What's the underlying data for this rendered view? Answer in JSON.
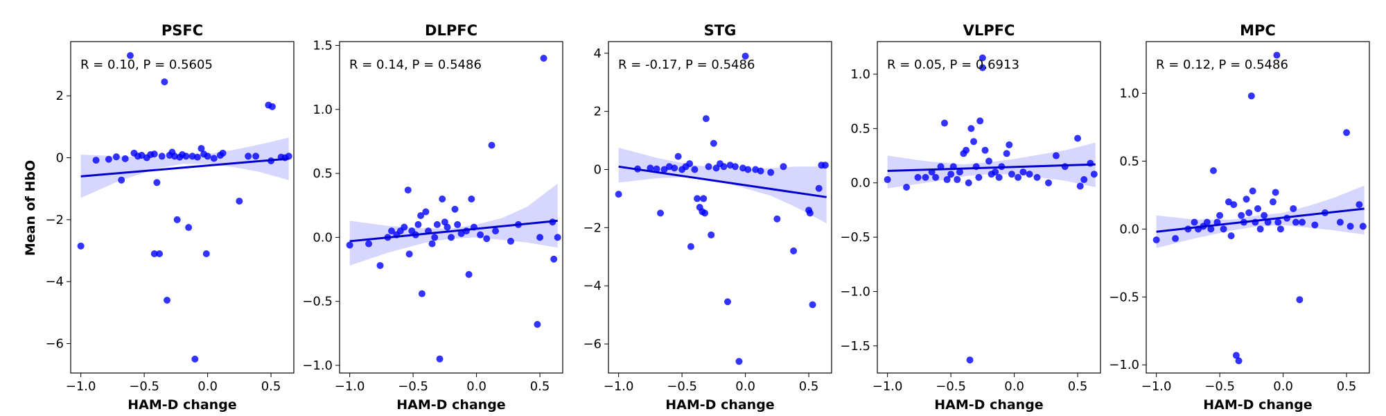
{
  "figure": {
    "ylabel": "Mean of HbO"
  },
  "colors": {
    "points": "#0000ff",
    "line": "#0000cc",
    "band": "#9999ff",
    "frame": "#000000"
  },
  "chart_data": [
    {
      "type": "scatter",
      "title": "PSFC",
      "xlabel": "HAM-D change",
      "annotation": "R = 0.10, P = 0.5605",
      "xlim": [
        -1.08,
        0.68
      ],
      "ylim": [
        -6.95,
        3.75
      ],
      "xticks": [
        -1.0,
        -0.5,
        0.0,
        0.5
      ],
      "xtick_labels": [
        "−1.0",
        "−0.5",
        "0.0",
        "0.5"
      ],
      "yticks": [
        -6,
        -4,
        -2,
        0,
        2
      ],
      "ytick_labels": [
        "−6",
        "−4",
        "−2",
        "0",
        "2"
      ],
      "regression": {
        "x": [
          -1.0,
          0.64
        ],
        "y": [
          -0.6,
          -0.03
        ]
      },
      "ci_band": {
        "x": [
          -1.0,
          -0.7,
          -0.4,
          -0.2,
          0.0,
          0.2,
          0.4,
          0.64
        ],
        "lower": [
          -1.3,
          -0.75,
          -0.35,
          -0.2,
          -0.2,
          -0.3,
          -0.45,
          -0.72
        ],
        "upper": [
          0.1,
          0.05,
          0.0,
          0.02,
          0.12,
          0.25,
          0.42,
          0.65
        ]
      },
      "points": [
        [
          -1.0,
          -2.85
        ],
        [
          -0.88,
          -0.08
        ],
        [
          -0.78,
          -0.05
        ],
        [
          -0.72,
          0.03
        ],
        [
          -0.68,
          -0.72
        ],
        [
          -0.65,
          -0.03
        ],
        [
          -0.61,
          3.3
        ],
        [
          -0.58,
          0.15
        ],
        [
          -0.55,
          0.05
        ],
        [
          -0.52,
          0.08
        ],
        [
          -0.48,
          0.0
        ],
        [
          -0.45,
          0.1
        ],
        [
          -0.42,
          0.12
        ],
        [
          -0.4,
          -0.8
        ],
        [
          -0.42,
          -3.1
        ],
        [
          -0.38,
          -3.1
        ],
        [
          -0.36,
          0.05
        ],
        [
          -0.34,
          2.45
        ],
        [
          -0.32,
          -4.6
        ],
        [
          -0.3,
          0.08
        ],
        [
          -0.28,
          0.18
        ],
        [
          -0.26,
          0.05
        ],
        [
          -0.24,
          -2.0
        ],
        [
          -0.22,
          0.02
        ],
        [
          -0.2,
          0.1
        ],
        [
          -0.17,
          0.05
        ],
        [
          -0.15,
          -2.25
        ],
        [
          -0.12,
          0.05
        ],
        [
          -0.1,
          -6.5
        ],
        [
          -0.08,
          0.02
        ],
        [
          -0.05,
          0.3
        ],
        [
          -0.03,
          0.12
        ],
        [
          -0.01,
          -3.1
        ],
        [
          0.0,
          0.05
        ],
        [
          0.05,
          -0.02
        ],
        [
          0.1,
          0.08
        ],
        [
          0.12,
          0.15
        ],
        [
          0.25,
          -1.4
        ],
        [
          0.32,
          0.05
        ],
        [
          0.38,
          0.05
        ],
        [
          0.48,
          1.7
        ],
        [
          0.51,
          1.65
        ],
        [
          0.5,
          -0.1
        ],
        [
          0.58,
          0.02
        ],
        [
          0.61,
          0.0
        ],
        [
          0.64,
          0.05
        ]
      ]
    },
    {
      "type": "scatter",
      "title": "DLPFC",
      "xlabel": "HAM-D change",
      "annotation": "R = 0.14, P = 0.5486",
      "xlim": [
        -1.08,
        0.68
      ],
      "ylim": [
        -1.06,
        1.53
      ],
      "xticks": [
        -1.0,
        -0.5,
        0.0,
        0.5
      ],
      "xtick_labels": [
        "−1.0",
        "−0.5",
        "0.0",
        "0.5"
      ],
      "yticks": [
        -1.0,
        -0.5,
        0.0,
        0.5,
        1.0,
        1.5
      ],
      "ytick_labels": [
        "−1.0",
        "−0.5",
        "0.0",
        "0.5",
        "1.0",
        "1.5"
      ],
      "regression": {
        "x": [
          -1.0,
          0.64
        ],
        "y": [
          -0.03,
          0.13
        ]
      },
      "ci_band": {
        "x": [
          -1.0,
          -0.7,
          -0.4,
          -0.2,
          0.0,
          0.2,
          0.4,
          0.64
        ],
        "lower": [
          -0.22,
          -0.12,
          -0.04,
          -0.01,
          0.0,
          -0.02,
          -0.04,
          -0.08
        ],
        "upper": [
          0.13,
          0.09,
          0.07,
          0.07,
          0.1,
          0.15,
          0.24,
          0.42
        ]
      },
      "points": [
        [
          -1.0,
          -0.06
        ],
        [
          -0.85,
          -0.05
        ],
        [
          -0.76,
          -0.22
        ],
        [
          -0.7,
          0.0
        ],
        [
          -0.67,
          0.05
        ],
        [
          -0.63,
          0.02
        ],
        [
          -0.6,
          0.05
        ],
        [
          -0.57,
          0.08
        ],
        [
          -0.54,
          0.37
        ],
        [
          -0.53,
          -0.13
        ],
        [
          -0.51,
          0.05
        ],
        [
          -0.48,
          0.02
        ],
        [
          -0.46,
          0.1
        ],
        [
          -0.44,
          0.17
        ],
        [
          -0.43,
          -0.44
        ],
        [
          -0.4,
          0.2
        ],
        [
          -0.38,
          0.05
        ],
        [
          -0.35,
          -0.05
        ],
        [
          -0.33,
          0.0
        ],
        [
          -0.31,
          0.1
        ],
        [
          -0.29,
          -0.95
        ],
        [
          -0.27,
          0.3
        ],
        [
          -0.25,
          0.12
        ],
        [
          -0.23,
          0.08
        ],
        [
          -0.2,
          0.0
        ],
        [
          -0.17,
          0.22
        ],
        [
          -0.15,
          0.1
        ],
        [
          -0.12,
          0.03
        ],
        [
          -0.08,
          0.05
        ],
        [
          -0.06,
          -0.29
        ],
        [
          -0.04,
          0.3
        ],
        [
          -0.02,
          0.08
        ],
        [
          0.03,
          0.02
        ],
        [
          0.08,
          -0.01
        ],
        [
          0.12,
          0.72
        ],
        [
          0.15,
          0.05
        ],
        [
          0.27,
          -0.03
        ],
        [
          0.33,
          0.1
        ],
        [
          0.48,
          -0.68
        ],
        [
          0.5,
          0.0
        ],
        [
          0.53,
          1.4
        ],
        [
          0.6,
          0.12
        ],
        [
          0.61,
          -0.17
        ],
        [
          0.64,
          0.0
        ]
      ]
    },
    {
      "type": "scatter",
      "title": "STG",
      "xlabel": "HAM-D change",
      "annotation": "R = -0.17, P = 0.5486",
      "xlim": [
        -1.08,
        0.68
      ],
      "ylim": [
        -7.0,
        4.4
      ],
      "xticks": [
        -1.0,
        -0.5,
        0.0,
        0.5
      ],
      "xtick_labels": [
        "−1.0",
        "−0.5",
        "0.0",
        "0.5"
      ],
      "yticks": [
        -6,
        -4,
        -2,
        0,
        2,
        4
      ],
      "ytick_labels": [
        "−6",
        "−4",
        "−2",
        "0",
        "2",
        "4"
      ],
      "regression": {
        "x": [
          -1.0,
          0.64
        ],
        "y": [
          0.1,
          -0.95
        ]
      },
      "ci_band": {
        "x": [
          -1.0,
          -0.7,
          -0.4,
          -0.2,
          0.0,
          0.2,
          0.4,
          0.64
        ],
        "lower": [
          -0.45,
          -0.3,
          -0.25,
          -0.4,
          -0.65,
          -0.9,
          -1.3,
          -1.85
        ],
        "upper": [
          0.75,
          0.4,
          0.15,
          0.05,
          0.0,
          0.05,
          0.1,
          0.1
        ]
      },
      "points": [
        [
          -1.0,
          -0.85
        ],
        [
          -0.85,
          0.02
        ],
        [
          -0.75,
          0.05
        ],
        [
          -0.7,
          0.02
        ],
        [
          -0.67,
          -1.5
        ],
        [
          -0.64,
          0.0
        ],
        [
          -0.6,
          0.1
        ],
        [
          -0.56,
          0.05
        ],
        [
          -0.53,
          0.45
        ],
        [
          -0.5,
          0.0
        ],
        [
          -0.47,
          0.1
        ],
        [
          -0.44,
          0.2
        ],
        [
          -0.43,
          -2.65
        ],
        [
          -0.4,
          0.0
        ],
        [
          -0.38,
          -1.0
        ],
        [
          -0.36,
          -1.3
        ],
        [
          -0.34,
          -1.45
        ],
        [
          -0.32,
          -1.5
        ],
        [
          -0.31,
          1.75
        ],
        [
          -0.33,
          -1.0
        ],
        [
          -0.29,
          0.1
        ],
        [
          -0.27,
          -2.25
        ],
        [
          -0.25,
          0.9
        ],
        [
          -0.23,
          0.05
        ],
        [
          -0.2,
          0.2
        ],
        [
          -0.17,
          0.1
        ],
        [
          -0.14,
          -4.55
        ],
        [
          -0.12,
          0.15
        ],
        [
          -0.08,
          0.1
        ],
        [
          -0.05,
          -6.6
        ],
        [
          -0.02,
          0.05
        ],
        [
          0.0,
          3.9
        ],
        [
          0.02,
          0.0
        ],
        [
          0.08,
          0.0
        ],
        [
          0.12,
          -0.05
        ],
        [
          0.2,
          -0.1
        ],
        [
          0.25,
          -1.7
        ],
        [
          0.3,
          0.1
        ],
        [
          0.38,
          -2.8
        ],
        [
          0.5,
          -1.4
        ],
        [
          0.51,
          -1.5
        ],
        [
          0.53,
          -4.65
        ],
        [
          0.58,
          -0.65
        ],
        [
          0.6,
          0.15
        ],
        [
          0.63,
          0.15
        ]
      ]
    },
    {
      "type": "scatter",
      "title": "VLPFC",
      "xlabel": "HAM-D change",
      "annotation": "R = 0.05, P = 0.6913",
      "xlim": [
        -1.08,
        0.68
      ],
      "ylim": [
        -1.75,
        1.3
      ],
      "xticks": [
        -1.0,
        -0.5,
        0.0,
        0.5
      ],
      "xtick_labels": [
        "−1.0",
        "−0.5",
        "0.0",
        "0.5"
      ],
      "yticks": [
        -1.5,
        -1.0,
        -0.5,
        0.0,
        0.5,
        1.0
      ],
      "ytick_labels": [
        "−1.5",
        "−1.0",
        "−0.5",
        "0.0",
        "0.5",
        "1.0"
      ],
      "regression": {
        "x": [
          -1.0,
          0.64
        ],
        "y": [
          0.11,
          0.17
        ]
      },
      "ci_band": {
        "x": [
          -1.0,
          -0.7,
          -0.4,
          -0.2,
          0.0,
          0.2,
          0.4,
          0.64
        ],
        "lower": [
          -0.05,
          0.0,
          0.06,
          0.08,
          0.08,
          0.05,
          0.02,
          -0.04
        ],
        "upper": [
          0.25,
          0.2,
          0.17,
          0.19,
          0.22,
          0.26,
          0.3,
          0.37
        ]
      },
      "points": [
        [
          -1.0,
          0.03
        ],
        [
          -0.85,
          -0.04
        ],
        [
          -0.76,
          0.05
        ],
        [
          -0.7,
          0.05
        ],
        [
          -0.65,
          0.1
        ],
        [
          -0.62,
          0.05
        ],
        [
          -0.58,
          0.15
        ],
        [
          -0.55,
          0.55
        ],
        [
          -0.53,
          0.03
        ],
        [
          -0.5,
          0.08
        ],
        [
          -0.48,
          0.15
        ],
        [
          -0.45,
          0.03
        ],
        [
          -0.43,
          0.1
        ],
        [
          -0.4,
          0.27
        ],
        [
          -0.38,
          0.3
        ],
        [
          -0.36,
          0.0
        ],
        [
          -0.35,
          -1.63
        ],
        [
          -0.34,
          0.5
        ],
        [
          -0.32,
          0.38
        ],
        [
          -0.3,
          0.15
        ],
        [
          -0.28,
          0.05
        ],
        [
          -0.27,
          0.57
        ],
        [
          -0.25,
          1.06
        ],
        [
          -0.25,
          1.15
        ],
        [
          -0.23,
          0.3
        ],
        [
          -0.2,
          0.2
        ],
        [
          -0.18,
          0.08
        ],
        [
          -0.15,
          0.1
        ],
        [
          -0.12,
          0.05
        ],
        [
          -0.1,
          0.15
        ],
        [
          -0.06,
          0.27
        ],
        [
          -0.04,
          0.35
        ],
        [
          -0.02,
          0.08
        ],
        [
          0.03,
          0.05
        ],
        [
          0.07,
          0.1
        ],
        [
          0.12,
          0.08
        ],
        [
          0.18,
          0.05
        ],
        [
          0.27,
          0.0
        ],
        [
          0.33,
          0.25
        ],
        [
          0.4,
          0.15
        ],
        [
          0.5,
          0.41
        ],
        [
          0.52,
          -0.03
        ],
        [
          0.55,
          0.03
        ],
        [
          0.6,
          0.18
        ],
        [
          0.63,
          0.08
        ]
      ]
    },
    {
      "type": "scatter",
      "title": "MPC",
      "xlabel": "HAM-D change",
      "annotation": "R = 0.12, P = 0.5486",
      "xlim": [
        -1.08,
        0.68
      ],
      "ylim": [
        -1.06,
        1.38
      ],
      "xticks": [
        -1.0,
        -0.5,
        0.0,
        0.5
      ],
      "xtick_labels": [
        "−1.0",
        "−0.5",
        "0.0",
        "0.5"
      ],
      "yticks": [
        -1.0,
        -0.5,
        0.0,
        0.5,
        1.0
      ],
      "ytick_labels": [
        "−1.0",
        "−0.5",
        "0.0",
        "0.5",
        "1.0"
      ],
      "regression": {
        "x": [
          -1.0,
          0.64
        ],
        "y": [
          -0.02,
          0.15
        ]
      },
      "ci_band": {
        "x": [
          -1.0,
          -0.7,
          -0.4,
          -0.2,
          0.0,
          0.2,
          0.4,
          0.64
        ],
        "lower": [
          -0.14,
          -0.07,
          -0.01,
          0.02,
          0.03,
          0.01,
          -0.01,
          -0.04
        ],
        "upper": [
          0.1,
          0.07,
          0.07,
          0.1,
          0.12,
          0.17,
          0.23,
          0.32
        ]
      },
      "points": [
        [
          -1.0,
          -0.08
        ],
        [
          -0.85,
          -0.07
        ],
        [
          -0.75,
          0.0
        ],
        [
          -0.7,
          0.05
        ],
        [
          -0.67,
          0.0
        ],
        [
          -0.63,
          0.02
        ],
        [
          -0.6,
          0.05
        ],
        [
          -0.57,
          0.0
        ],
        [
          -0.55,
          0.43
        ],
        [
          -0.52,
          0.05
        ],
        [
          -0.5,
          0.1
        ],
        [
          -0.47,
          0.0
        ],
        [
          -0.43,
          0.2
        ],
        [
          -0.41,
          -0.05
        ],
        [
          -0.39,
          0.18
        ],
        [
          -0.37,
          -0.93
        ],
        [
          -0.35,
          -0.97
        ],
        [
          -0.33,
          0.1
        ],
        [
          -0.31,
          0.05
        ],
        [
          -0.29,
          0.22
        ],
        [
          -0.27,
          0.12
        ],
        [
          -0.25,
          0.98
        ],
        [
          -0.24,
          0.28
        ],
        [
          -0.22,
          0.05
        ],
        [
          -0.2,
          0.15
        ],
        [
          -0.18,
          0.0
        ],
        [
          -0.15,
          0.1
        ],
        [
          -0.12,
          0.05
        ],
        [
          -0.08,
          0.2
        ],
        [
          -0.06,
          0.27
        ],
        [
          -0.05,
          1.28
        ],
        [
          -0.04,
          0.05
        ],
        [
          -0.02,
          0.0
        ],
        [
          0.03,
          0.08
        ],
        [
          0.08,
          0.15
        ],
        [
          0.1,
          0.05
        ],
        [
          0.13,
          -0.52
        ],
        [
          0.15,
          0.05
        ],
        [
          0.25,
          0.03
        ],
        [
          0.33,
          0.12
        ],
        [
          0.45,
          0.05
        ],
        [
          0.5,
          0.71
        ],
        [
          0.53,
          0.02
        ],
        [
          0.6,
          0.18
        ],
        [
          0.63,
          0.02
        ]
      ]
    }
  ]
}
